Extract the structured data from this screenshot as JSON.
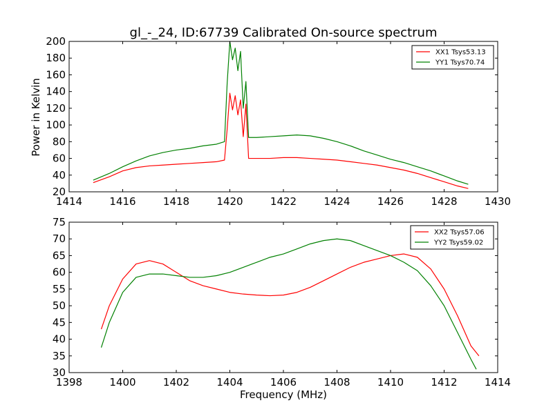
{
  "figure": {
    "title": "gl_-_24, ID:67739 Calibrated On-source spectrum",
    "xlabel": "Frequency (MHz)",
    "ylabel": "Power in Kelvin"
  },
  "chart_data": [
    {
      "type": "line",
      "title": "gl_-_24, ID:67739 Calibrated On-source spectrum",
      "xlabel": "",
      "ylabel": "Power in Kelvin",
      "xlim": [
        1414,
        1430
      ],
      "ylim": [
        20,
        200
      ],
      "xticks": [
        1414,
        1416,
        1418,
        1420,
        1422,
        1424,
        1426,
        1428,
        1430
      ],
      "yticks": [
        20,
        40,
        60,
        80,
        100,
        120,
        140,
        160,
        180,
        200
      ],
      "grid": false,
      "legend_position": "top-right",
      "series": [
        {
          "name": "XX1 Tsys53.13",
          "color": "#ff0000",
          "x": [
            1414.9,
            1415.5,
            1416.0,
            1416.5,
            1417.0,
            1417.5,
            1418.0,
            1418.5,
            1419.0,
            1419.5,
            1419.8,
            1419.9,
            1420.0,
            1420.1,
            1420.2,
            1420.3,
            1420.4,
            1420.5,
            1420.6,
            1420.7,
            1421.0,
            1421.5,
            1422.0,
            1422.5,
            1423.0,
            1423.5,
            1424.0,
            1424.5,
            1425.0,
            1425.5,
            1426.0,
            1426.5,
            1427.0,
            1427.5,
            1428.0,
            1428.5,
            1428.9
          ],
          "y": [
            31,
            38,
            45,
            49,
            51,
            52,
            53,
            54,
            55,
            56,
            58,
            95,
            138,
            118,
            135,
            112,
            130,
            86,
            125,
            60,
            60,
            60,
            61,
            61,
            60,
            59,
            58,
            56,
            54,
            52,
            49,
            46,
            42,
            37,
            32,
            27,
            24
          ]
        },
        {
          "name": "YY1 Tsys70.74",
          "color": "#008000",
          "x": [
            1414.9,
            1415.5,
            1416.0,
            1416.5,
            1417.0,
            1417.5,
            1418.0,
            1418.5,
            1419.0,
            1419.5,
            1419.8,
            1419.9,
            1420.0,
            1420.1,
            1420.2,
            1420.3,
            1420.4,
            1420.5,
            1420.6,
            1420.7,
            1421.0,
            1421.5,
            1422.0,
            1422.5,
            1423.0,
            1423.5,
            1424.0,
            1424.5,
            1425.0,
            1425.5,
            1426.0,
            1426.5,
            1427.0,
            1427.5,
            1428.0,
            1428.5,
            1428.9
          ],
          "y": [
            34,
            42,
            50,
            57,
            63,
            67,
            70,
            72,
            75,
            77,
            80,
            150,
            200,
            178,
            192,
            165,
            188,
            120,
            152,
            85,
            85,
            86,
            87,
            88,
            87,
            84,
            80,
            75,
            69,
            64,
            59,
            55,
            50,
            45,
            39,
            33,
            29
          ]
        }
      ]
    },
    {
      "type": "line",
      "title": "",
      "xlabel": "Frequency (MHz)",
      "ylabel": "",
      "xlim": [
        1398,
        1414
      ],
      "ylim": [
        30,
        75
      ],
      "xticks": [
        1398,
        1400,
        1402,
        1404,
        1406,
        1408,
        1410,
        1412,
        1414
      ],
      "yticks": [
        30,
        35,
        40,
        45,
        50,
        55,
        60,
        65,
        70,
        75
      ],
      "grid": false,
      "legend_position": "top-right",
      "series": [
        {
          "name": "XX2 Tsys57.06",
          "color": "#ff0000",
          "x": [
            1399.2,
            1399.5,
            1400.0,
            1400.5,
            1401.0,
            1401.5,
            1402.0,
            1402.5,
            1403.0,
            1403.5,
            1404.0,
            1404.5,
            1405.0,
            1405.5,
            1406.0,
            1406.5,
            1407.0,
            1407.5,
            1408.0,
            1408.5,
            1409.0,
            1409.5,
            1410.0,
            1410.5,
            1411.0,
            1411.5,
            1412.0,
            1412.5,
            1413.0,
            1413.3
          ],
          "y": [
            43,
            50,
            58,
            62.5,
            63.5,
            62.5,
            60,
            57.5,
            56,
            55,
            54,
            53.5,
            53.2,
            53,
            53.2,
            54,
            55.5,
            57.5,
            59.5,
            61.5,
            63,
            64,
            65,
            65.5,
            64.5,
            61,
            55,
            47,
            38,
            35
          ]
        },
        {
          "name": "YY2 Tsys59.02",
          "color": "#008000",
          "x": [
            1399.2,
            1399.5,
            1400.0,
            1400.5,
            1401.0,
            1401.5,
            1402.0,
            1402.5,
            1403.0,
            1403.5,
            1404.0,
            1404.5,
            1405.0,
            1405.5,
            1406.0,
            1406.5,
            1407.0,
            1407.5,
            1408.0,
            1408.5,
            1409.0,
            1409.5,
            1410.0,
            1410.5,
            1411.0,
            1411.5,
            1412.0,
            1412.5,
            1413.0,
            1413.2
          ],
          "y": [
            37.5,
            45,
            54,
            58.5,
            59.5,
            59.5,
            59,
            58.5,
            58.5,
            59,
            60,
            61.5,
            63,
            64.5,
            65.5,
            67,
            68.5,
            69.5,
            70,
            69.5,
            68,
            66.5,
            65,
            63,
            60.5,
            56,
            50,
            42,
            34,
            31
          ]
        }
      ]
    }
  ]
}
